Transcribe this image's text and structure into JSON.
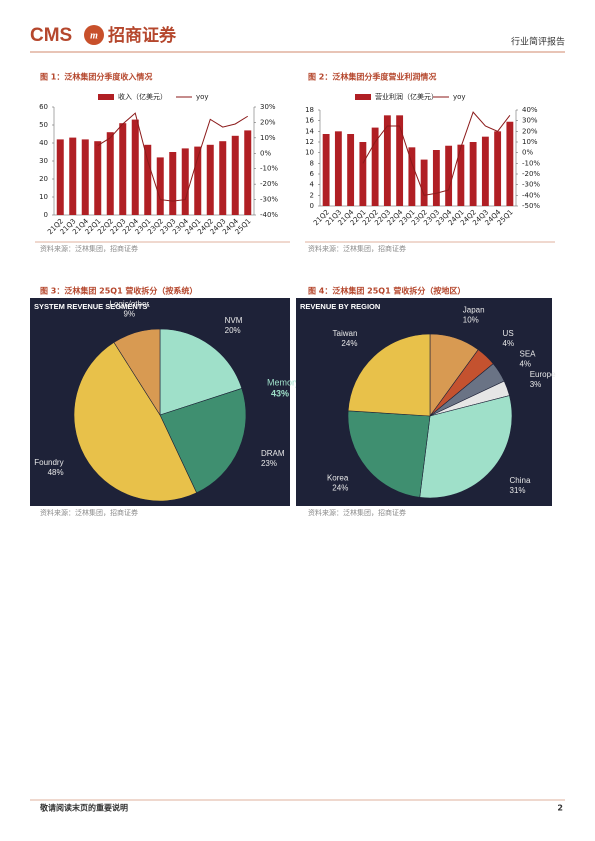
{
  "header": {
    "logo": "CMS",
    "brand": "招商证券",
    "report_type": "行业简评报告"
  },
  "chart_data": [
    {
      "type": "bar",
      "title": "图 1：泛林集团分季度收入情况",
      "source": "资料来源：泛林集团，招商证券",
      "categories": [
        "21Q2",
        "21Q3",
        "21Q4",
        "22Q1",
        "22Q2",
        "22Q3",
        "22Q4",
        "23Q1",
        "23Q2",
        "23Q3",
        "23Q4",
        "24Q1",
        "24Q2",
        "24Q3",
        "24Q4",
        "25Q1"
      ],
      "series": [
        {
          "name": "收入（亿美元）",
          "type": "bar",
          "color": "#b01f24",
          "values": [
            42,
            43,
            42,
            41,
            46,
            51,
            53,
            39,
            32,
            35,
            37,
            38,
            39,
            41,
            44,
            47
          ]
        },
        {
          "name": "yoy",
          "type": "line",
          "axis": "y2",
          "color": "#8b1a1a",
          "values": [
            null,
            null,
            null,
            5,
            10,
            19,
            26,
            -5,
            -30,
            -31,
            -30,
            -3,
            22,
            17,
            19,
            24
          ]
        }
      ],
      "ylim": [
        0,
        60
      ],
      "yticks": [
        0,
        10,
        20,
        30,
        40,
        50,
        60
      ],
      "y2lim": [
        -40,
        30
      ],
      "y2ticks": [
        {
          "value": -40,
          "label": "-40%"
        },
        {
          "value": -30,
          "label": "-30%"
        },
        {
          "value": -20,
          "label": "-20%"
        },
        {
          "value": -10,
          "label": "-10%"
        },
        {
          "value": 0,
          "label": "0%"
        },
        {
          "value": 10,
          "label": "10%"
        },
        {
          "value": 20,
          "label": "20%"
        },
        {
          "value": 30,
          "label": "30%"
        }
      ]
    },
    {
      "type": "bar",
      "title": "图 2：泛林集团分季度营业利润情况",
      "source": "资料来源：泛林集团，招商证券",
      "categories": [
        "21Q2",
        "21Q3",
        "21Q4",
        "22Q1",
        "22Q2",
        "22Q3",
        "22Q4",
        "23Q1",
        "23Q2",
        "23Q3",
        "23Q4",
        "24Q1",
        "24Q2",
        "24Q3",
        "24Q4",
        "25Q1"
      ],
      "series": [
        {
          "name": "营业利润（亿美元）",
          "type": "bar",
          "color": "#b01f24",
          "values": [
            13.5,
            14,
            13.5,
            12,
            14.7,
            17,
            17,
            11,
            8.7,
            10.5,
            11.3,
            11.5,
            12,
            13,
            14,
            15.8
          ]
        },
        {
          "name": "yoy",
          "type": "line",
          "axis": "y2",
          "color": "#8b1a1a",
          "values": [
            null,
            null,
            null,
            -10,
            10,
            25,
            25,
            -10,
            -40,
            -38,
            -35,
            5,
            38,
            25,
            20,
            35
          ]
        }
      ],
      "ylim": [
        0,
        18
      ],
      "yticks": [
        0,
        2,
        4,
        6,
        8,
        10,
        12,
        14,
        16,
        18
      ],
      "y2lim": [
        -50,
        40
      ],
      "y2ticks": [
        {
          "value": -50,
          "label": "-50%"
        },
        {
          "value": -40,
          "label": "-40%"
        },
        {
          "value": -30,
          "label": "-30%"
        },
        {
          "value": -20,
          "label": "-20%"
        },
        {
          "value": -10,
          "label": "-10%"
        },
        {
          "value": 0,
          "label": "0%"
        },
        {
          "value": 10,
          "label": "10%"
        },
        {
          "value": 20,
          "label": "20%"
        },
        {
          "value": 30,
          "label": "30%"
        },
        {
          "value": 40,
          "label": "40%"
        }
      ]
    },
    {
      "type": "pie",
      "title": "图 3：泛林集团 25Q1 营收拆分（按系统）",
      "subtitle": "SYSTEM REVENUE SEGMENTS¹",
      "source": "资料来源：泛林集团，招商证券",
      "categories": [
        "NVM",
        "DRAM",
        "Foundry",
        "Logic/other"
      ],
      "values": [
        20,
        23,
        48,
        9
      ],
      "value_labels": [
        "20%",
        "23%",
        "48%",
        "9%"
      ],
      "colors": [
        "#9fe0c9",
        "#3f8f70",
        "#e8c14a",
        "#d89a52"
      ],
      "annotation": [
        "Memory",
        "43%"
      ]
    },
    {
      "type": "pie",
      "title": "图 4：泛林集团 25Q1 营收拆分（按地区）",
      "subtitle": "REVENUE BY REGION",
      "source": "资料来源：泛林集团，招商证券",
      "categories": [
        "Japan",
        "US",
        "SEA",
        "Europe",
        "China",
        "Korea",
        "Taiwan"
      ],
      "values": [
        10,
        4,
        4,
        3,
        31,
        24,
        24
      ],
      "value_labels": [
        "10%",
        "4%",
        "4%",
        "3%",
        "31%",
        "24%",
        "24%"
      ],
      "colors": [
        "#d89a52",
        "#c4522f",
        "#6a7385",
        "#e6e6e6",
        "#9fe0c9",
        "#3f8f70",
        "#e8c14a"
      ]
    }
  ],
  "footer": {
    "disclaimer": "敬请阅读末页的重要说明",
    "page": 2
  }
}
